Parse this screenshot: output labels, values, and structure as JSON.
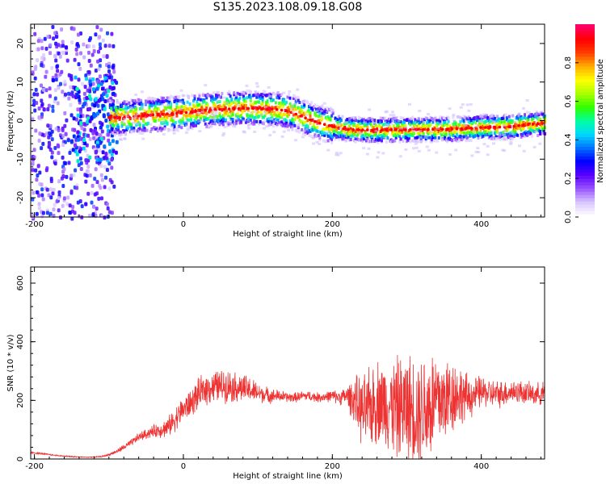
{
  "title": "S135.2023.108.09.18.G08",
  "chart_data": [
    {
      "type": "heatmap",
      "xlabel": "Height of straight line (km)",
      "ylabel": "Frequency (Hz)",
      "xlim": [
        -205,
        485
      ],
      "ylim": [
        -25,
        25
      ],
      "xticks": [
        -200,
        0,
        200,
        400
      ],
      "yticks": [
        -20,
        -10,
        0,
        10,
        20
      ],
      "grid": false,
      "ridge": {
        "x": [
          -100,
          -80,
          -60,
          -40,
          -20,
          0,
          20,
          40,
          60,
          80,
          100,
          120,
          140,
          160,
          180,
          200,
          220,
          240,
          260,
          280,
          300,
          320,
          340,
          360,
          380,
          400,
          420,
          440,
          460,
          480
        ],
        "frequency_hz": [
          0.8,
          0.8,
          1.2,
          1.5,
          1.8,
          2.0,
          2.5,
          2.9,
          3.0,
          3.2,
          3.1,
          3.0,
          2.5,
          1.0,
          -0.5,
          -1.5,
          -2.3,
          -2.4,
          -2.5,
          -2.4,
          -2.3,
          -2.3,
          -2.3,
          -2.2,
          -2.0,
          -1.8,
          -1.7,
          -1.6,
          -1.0,
          -0.8
        ]
      },
      "colorbar": {
        "label": "Normalized spectral amplitude",
        "range": [
          0.0,
          1.0
        ],
        "ticks": [
          "0.0",
          "0.2",
          "0.4",
          "0.6",
          "0.8"
        ],
        "colors": [
          "#ffffff",
          "#d8c6ff",
          "#9a55ff",
          "#5a00ff",
          "#0000ff",
          "#0070ff",
          "#00d8ff",
          "#00ffa0",
          "#30ff00",
          "#a8ff00",
          "#ffff00",
          "#ffb000",
          "#ff4000",
          "#ff0000",
          "#ff0066"
        ]
      }
    },
    {
      "type": "line",
      "xlabel": "Height of straight line (km)",
      "ylabel": "SNR (10 * v/v)",
      "xlim": [
        -205,
        485
      ],
      "ylim": [
        0,
        655
      ],
      "xticks": [
        -200,
        0,
        200,
        400
      ],
      "yticks": [
        0,
        200,
        400,
        600
      ],
      "grid": false,
      "series": [
        {
          "color": "#ee3333",
          "x": [
            -205,
            -190,
            -170,
            -150,
            -130,
            -110,
            -100,
            -90,
            -80,
            -70,
            -60,
            -50,
            -40,
            -30,
            -20,
            -10,
            0,
            10,
            20,
            30,
            40,
            50,
            60,
            70,
            80,
            90,
            100,
            110,
            120,
            130,
            140,
            150,
            160,
            170,
            180,
            190,
            200,
            210,
            220,
            230,
            240,
            250,
            260,
            270,
            280,
            290,
            300,
            310,
            320,
            330,
            340,
            350,
            360,
            370,
            380,
            390,
            400,
            410,
            420,
            430,
            440,
            450,
            460,
            470,
            485
          ],
          "y": [
            22,
            18,
            12,
            8,
            6,
            8,
            15,
            25,
            40,
            55,
            75,
            85,
            95,
            100,
            110,
            140,
            170,
            190,
            220,
            240,
            245,
            250,
            250,
            245,
            240,
            235,
            225,
            220,
            215,
            215,
            210,
            210,
            215,
            215,
            210,
            212,
            215,
            210,
            215,
            200,
            160,
            170,
            200,
            190,
            180,
            170,
            180,
            170,
            170,
            180,
            200,
            200,
            220,
            220,
            210,
            215,
            230,
            225,
            220,
            225,
            230,
            230,
            225,
            220,
            225
          ],
          "noise_amplitude": [
            4,
            4,
            3,
            3,
            2,
            3,
            6,
            10,
            15,
            18,
            22,
            25,
            30,
            40,
            50,
            60,
            65,
            70,
            75,
            80,
            80,
            80,
            80,
            75,
            70,
            65,
            50,
            40,
            35,
            30,
            25,
            25,
            25,
            25,
            25,
            25,
            30,
            35,
            50,
            120,
            170,
            200,
            210,
            210,
            230,
            260,
            260,
            270,
            280,
            300,
            260,
            220,
            200,
            150,
            120,
            90,
            80,
            70,
            70,
            65,
            60,
            60,
            55,
            55,
            55
          ]
        }
      ]
    }
  ]
}
